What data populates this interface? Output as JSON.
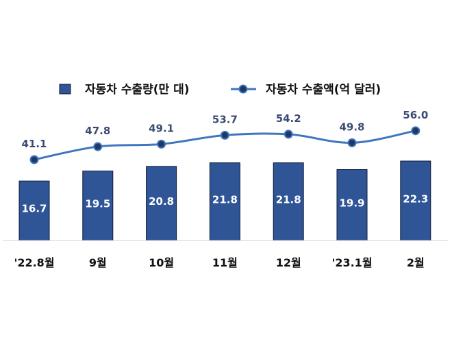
{
  "chart_data": {
    "type": "bar",
    "categories": [
      "'22.8월",
      "9월",
      "10월",
      "11월",
      "12월",
      "'23.1월",
      "2월"
    ],
    "series": [
      {
        "name": "자동차 수출량(만 대)",
        "type": "bar",
        "values": [
          16.7,
          19.5,
          20.8,
          21.8,
          21.8,
          19.9,
          22.3
        ]
      },
      {
        "name": "자동차 수출액(억 달러)",
        "type": "line",
        "values": [
          41.1,
          47.8,
          49.1,
          53.7,
          54.2,
          49.8,
          56.0
        ]
      }
    ],
    "bar_labels": [
      "16.7",
      "19.5",
      "20.8",
      "21.8",
      "21.8",
      "19.9",
      "22.3"
    ],
    "line_labels": [
      "41.1",
      "47.8",
      "49.1",
      "53.7",
      "54.2",
      "49.8",
      "56.0"
    ],
    "bar_ylim": [
      0,
      26
    ],
    "line_ylim": [
      -45,
      70
    ],
    "legend_position": "top-center",
    "colors": {
      "bar_fill": "#2f5597",
      "bar_stroke": "#0d1a33",
      "line": "#3e76c0",
      "marker": "#1f3864",
      "line_label": "#3b4c73",
      "axis": "#d0d0d0"
    }
  }
}
